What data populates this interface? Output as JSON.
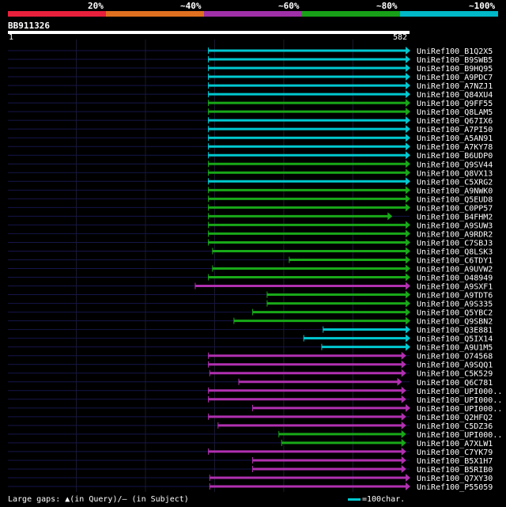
{
  "legend": {
    "bins": [
      {
        "label": "20%",
        "color": "#e8203c"
      },
      {
        "label": "~40%",
        "color": "#e07020"
      },
      {
        "label": "~60%",
        "color": "#a030a8"
      },
      {
        "label": "~80%",
        "color": "#18a018"
      },
      {
        "label": "~100%",
        "color": "#00b8c8"
      }
    ]
  },
  "query": {
    "id": "BB911326",
    "start_label": "1",
    "end_label": "582",
    "length": 582
  },
  "footer": {
    "gaps_text": "Large gaps: ▲(in Query)/– (in Subject)",
    "scale_text": "=100char."
  },
  "chart_data": {
    "type": "alignment",
    "x_range": [
      1,
      582
    ],
    "hits": [
      {
        "name": "UniRef100_B1Q2X5",
        "start": 291,
        "end": 582,
        "color": "cyan"
      },
      {
        "name": "UniRef100_B9SWB5",
        "start": 291,
        "end": 582,
        "color": "cyan"
      },
      {
        "name": "UniRef100_B9HQ95",
        "start": 291,
        "end": 582,
        "color": "cyan"
      },
      {
        "name": "UniRef100_A9PDC7",
        "start": 291,
        "end": 582,
        "color": "cyan"
      },
      {
        "name": "UniRef100_A7NZJ1",
        "start": 291,
        "end": 582,
        "color": "cyan"
      },
      {
        "name": "UniRef100_Q84XU4",
        "start": 291,
        "end": 582,
        "color": "cyan"
      },
      {
        "name": "UniRef100_Q9FF55",
        "start": 291,
        "end": 582,
        "color": "green"
      },
      {
        "name": "UniRef100_Q8LAM5",
        "start": 291,
        "end": 582,
        "color": "green"
      },
      {
        "name": "UniRef100_Q67IX6",
        "start": 291,
        "end": 582,
        "color": "cyan"
      },
      {
        "name": "UniRef100_A7PI50",
        "start": 291,
        "end": 582,
        "color": "cyan"
      },
      {
        "name": "UniRef100_A5AN91",
        "start": 291,
        "end": 582,
        "color": "cyan"
      },
      {
        "name": "UniRef100_A7KY78",
        "start": 291,
        "end": 582,
        "color": "cyan"
      },
      {
        "name": "UniRef100_B6UDP0",
        "start": 291,
        "end": 582,
        "color": "cyan"
      },
      {
        "name": "UniRef100_Q9SV44",
        "start": 291,
        "end": 582,
        "color": "green"
      },
      {
        "name": "UniRef100_Q8VX13",
        "start": 291,
        "end": 582,
        "color": "green"
      },
      {
        "name": "UniRef100_C5XRG2",
        "start": 291,
        "end": 582,
        "color": "cyan"
      },
      {
        "name": "UniRef100_A9NWK0",
        "start": 291,
        "end": 582,
        "color": "green"
      },
      {
        "name": "UniRef100_Q5EUD8",
        "start": 291,
        "end": 582,
        "color": "green"
      },
      {
        "name": "UniRef100_C0PP57",
        "start": 291,
        "end": 582,
        "color": "green"
      },
      {
        "name": "UniRef100_B4FHM2",
        "start": 291,
        "end": 556,
        "color": "green"
      },
      {
        "name": "UniRef100_A9SUW3",
        "start": 291,
        "end": 582,
        "color": "green"
      },
      {
        "name": "UniRef100_A9RDR2",
        "start": 291,
        "end": 582,
        "color": "green"
      },
      {
        "name": "UniRef100_C7SBJ3",
        "start": 291,
        "end": 582,
        "color": "green"
      },
      {
        "name": "UniRef100_Q8LSK3",
        "start": 297,
        "end": 582,
        "color": "green"
      },
      {
        "name": "UniRef100_C6TDY1",
        "start": 408,
        "end": 582,
        "color": "green"
      },
      {
        "name": "UniRef100_A9UVW2",
        "start": 297,
        "end": 582,
        "color": "green"
      },
      {
        "name": "UniRef100_O48949",
        "start": 291,
        "end": 582,
        "color": "green"
      },
      {
        "name": "UniRef100_A9SXF1",
        "start": 272,
        "end": 582,
        "color": "magenta"
      },
      {
        "name": "UniRef100_A9TDT6",
        "start": 376,
        "end": 582,
        "color": "green"
      },
      {
        "name": "UniRef100_A9S335",
        "start": 376,
        "end": 582,
        "color": "green"
      },
      {
        "name": "UniRef100_Q5YBC2",
        "start": 355,
        "end": 582,
        "color": "green"
      },
      {
        "name": "UniRef100_Q9SBN2",
        "start": 328,
        "end": 582,
        "color": "green"
      },
      {
        "name": "UniRef100_Q3E881",
        "start": 457,
        "end": 582,
        "color": "cyan"
      },
      {
        "name": "UniRef100_Q5IX14",
        "start": 429,
        "end": 582,
        "color": "cyan"
      },
      {
        "name": "UniRef100_A9U1M5",
        "start": 455,
        "end": 582,
        "color": "cyan"
      },
      {
        "name": "UniRef100_O74568",
        "start": 291,
        "end": 576,
        "color": "magenta"
      },
      {
        "name": "UniRef100_A9SQQ1",
        "start": 291,
        "end": 576,
        "color": "magenta"
      },
      {
        "name": "UniRef100_C5K529",
        "start": 293,
        "end": 576,
        "color": "magenta"
      },
      {
        "name": "UniRef100_Q6C781",
        "start": 335,
        "end": 570,
        "color": "magenta"
      },
      {
        "name": "UniRef100_UPI000..",
        "start": 291,
        "end": 576,
        "color": "magenta"
      },
      {
        "name": "UniRef100_UPI000..",
        "start": 291,
        "end": 576,
        "color": "magenta"
      },
      {
        "name": "UniRef100_UPI000..",
        "start": 355,
        "end": 582,
        "color": "magenta"
      },
      {
        "name": "UniRef100_Q2HFQ2",
        "start": 291,
        "end": 576,
        "color": "magenta"
      },
      {
        "name": "UniRef100_C5DZ36",
        "start": 305,
        "end": 576,
        "color": "magenta"
      },
      {
        "name": "UniRef100_UPI000..",
        "start": 393,
        "end": 576,
        "color": "green"
      },
      {
        "name": "UniRef100_A7XLW1",
        "start": 397,
        "end": 576,
        "color": "green"
      },
      {
        "name": "UniRef100_C7YK79",
        "start": 291,
        "end": 576,
        "color": "magenta"
      },
      {
        "name": "UniRef100_B5X1H7",
        "start": 355,
        "end": 576,
        "color": "magenta"
      },
      {
        "name": "UniRef100_B5RIB0",
        "start": 355,
        "end": 576,
        "color": "magenta"
      },
      {
        "name": "UniRef100_Q7XY30",
        "start": 293,
        "end": 582,
        "color": "magenta"
      },
      {
        "name": "UniRef100_P55059",
        "start": 293,
        "end": 582,
        "color": "magenta"
      }
    ]
  }
}
